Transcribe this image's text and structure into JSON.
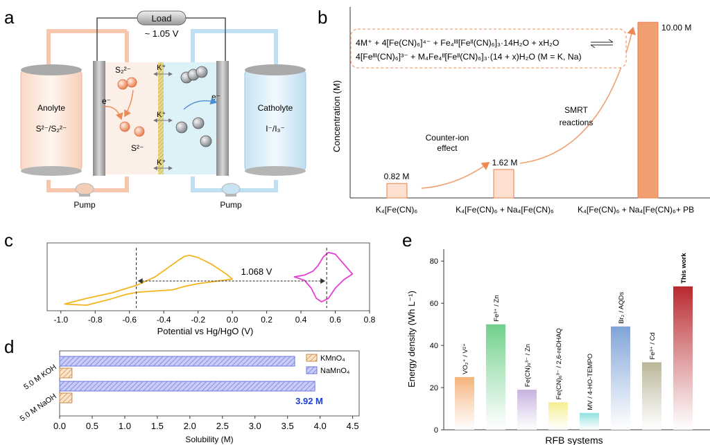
{
  "panels": {
    "a": {
      "label": "a",
      "load": "Load",
      "voltage": "~ 1.05 V",
      "anolyte_title": "Anolyte",
      "anolyte_species": "S²⁻/S₂²⁻",
      "catholyte_title": "Catholyte",
      "catholyte_species": "I⁻/I₃⁻",
      "pump_left": "Pump",
      "pump_right": "Pump",
      "ion_top": "K⁺",
      "ion_mid": "K⁺",
      "ion_bottom": "K⁺",
      "species_s2": "S₂²⁻",
      "species_s": "S²⁻",
      "electron_left": "e⁻",
      "electron_right": "e⁻"
    },
    "b": {
      "label": "b"
    },
    "c": {
      "label": "c"
    },
    "d": {
      "label": "d"
    },
    "e": {
      "label": "e"
    }
  },
  "chart_data": [
    {
      "panel": "b",
      "type": "bar",
      "ylabel": "Concentration (M)",
      "categories": [
        "K₄[Fe(CN)₆",
        "K₄[Fe(CN)₆ + Na₄[Fe(CN)₆",
        "K₄[Fe(CN)₆ + Na₄[Fe(CN)₆+ PB"
      ],
      "values": [
        0.82,
        1.62,
        10.0
      ],
      "data_labels": [
        "0.82 M",
        "1.62 M",
        "10.00 M"
      ],
      "ylim": [
        0,
        10.4
      ],
      "annotations": {
        "counter_ion_1": "Counter-ion",
        "counter_ion_2": "effect",
        "smrt_1": "SMRT",
        "smrt_2": "reactions",
        "reaction_line1": "4M⁺ + 4[Fe(CN)₆]⁴⁻ + Fe₄ᴵᴵᴵ[Feᴵᴵ(CN)₆]₃·14H₂O + xH₂O",
        "reaction_line2": "4[Feᴵᴵᴵ(CN)₆]³⁻ + M₄Fe₄ᴵᴵ[Feᴵᴵ(CN)₆]₃·(14 + x)H₂O (M = K, Na)"
      },
      "colors": {
        "small_bars": "#fde0d0",
        "large_bar": "#f0a070",
        "edge": "#e8804a"
      }
    },
    {
      "panel": "c",
      "type": "line",
      "xlabel": "Potential vs Hg/HgO (V)",
      "ticks": [
        "-1.0",
        "-0.8",
        "-0.6",
        "-0.4",
        "-0.2",
        "0.0",
        "0.2",
        "0.4",
        "0.6",
        "0.8"
      ],
      "xlim": [
        -1.08,
        0.8
      ],
      "series": [
        {
          "color": "#f2b51e",
          "upper_x": [
            -0.98,
            -0.85,
            -0.7,
            -0.55,
            -0.45,
            -0.38,
            -0.32,
            -0.28,
            -0.25,
            -0.2,
            -0.12,
            -0.04,
            0.0
          ],
          "upper_y": [
            0.02,
            0.12,
            0.22,
            0.36,
            0.5,
            0.65,
            0.78,
            0.86,
            0.88,
            0.84,
            0.72,
            0.56,
            0.46
          ],
          "lower_x": [
            0.0,
            -0.1,
            -0.2,
            -0.28,
            -0.35,
            -0.45,
            -0.55,
            -0.62,
            -0.72,
            -0.85,
            -0.98
          ],
          "lower_y": [
            0.46,
            0.42,
            0.38,
            0.33,
            0.27,
            0.25,
            0.23,
            0.19,
            0.1,
            0.0,
            0.02
          ]
        },
        {
          "color": "#e83cd6",
          "upper_x": [
            0.36,
            0.42,
            0.47,
            0.5,
            0.53,
            0.56,
            0.6,
            0.64,
            0.68,
            0.7
          ],
          "upper_y": [
            0.5,
            0.53,
            0.6,
            0.7,
            0.85,
            0.93,
            0.9,
            0.76,
            0.62,
            0.55
          ],
          "lower_x": [
            0.7,
            0.65,
            0.6,
            0.56,
            0.52,
            0.49,
            0.46,
            0.42,
            0.36
          ],
          "lower_y": [
            0.55,
            0.45,
            0.3,
            0.12,
            0.06,
            0.12,
            0.3,
            0.44,
            0.5
          ]
        }
      ],
      "markers": [
        -0.56,
        0.55
      ],
      "annotation": "1.068 V"
    },
    {
      "panel": "d",
      "type": "bar",
      "orientation": "horizontal",
      "xlabel": "Solubility (M)",
      "categories": [
        "5.0 M KOH",
        "5.0 M NaOH"
      ],
      "series": [
        {
          "name": "KMnO₄",
          "values": [
            0.19,
            0.19
          ],
          "color": "#f0c896"
        },
        {
          "name": "NaMnO₄",
          "values": [
            3.61,
            3.92
          ],
          "color": "#a8b0ee"
        }
      ],
      "ticks": [
        "0.0",
        "0.5",
        "1.0",
        "1.5",
        "2.0",
        "2.5",
        "3.0",
        "3.5",
        "4.0",
        "4.5"
      ],
      "xlim": [
        0,
        4.6
      ],
      "highlight": "3.92 M",
      "highlight_color": "#1a3fd0"
    },
    {
      "panel": "e",
      "type": "bar",
      "ylabel": "Energy density (Wh L⁻¹)",
      "xlabel": "RFB systems",
      "categories": [
        "VO₂⁺ / V²⁺",
        "Fe³⁺ / Zn",
        "Fe(CN)₆³⁻ / Zn",
        "Fe(CN)₆³⁻ / 2,6-reDHAQ",
        "MV / 4-HO-TEMPO",
        "Br₂ / AQDs",
        "Fe³⁺ / Cd",
        "This work"
      ],
      "values": [
        25,
        50,
        19,
        13,
        8,
        49,
        32,
        68
      ],
      "colors": [
        "#f5b27a",
        "#6fd08a",
        "#c7b2e0",
        "#f5ee8e",
        "#8fe0e0",
        "#7ea3d8",
        "#b9b598",
        "#b8282e"
      ],
      "ticks": [
        "0",
        "20",
        "40",
        "60",
        "80"
      ],
      "ylim": [
        0,
        85
      ]
    }
  ]
}
